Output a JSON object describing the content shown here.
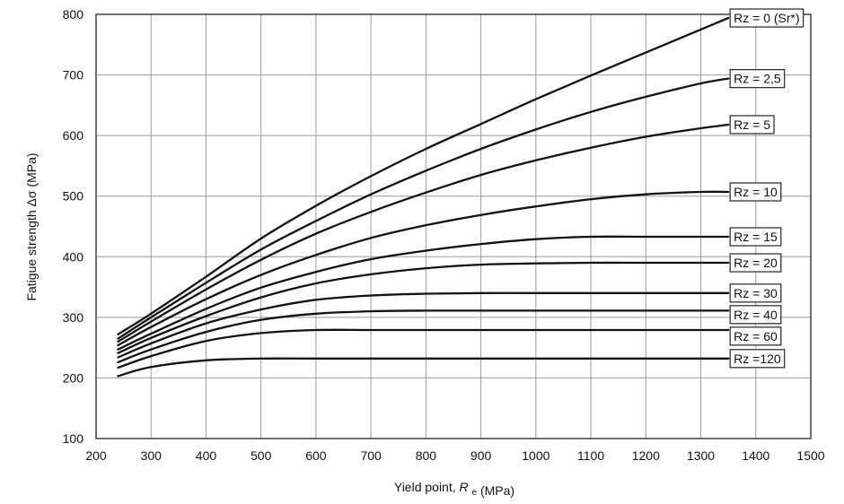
{
  "chart_data": {
    "type": "line",
    "title": "",
    "xlabel": "Yield point,",
    "xlabel_symbol": "R",
    "xlabel_sub": "e",
    "xlabel_unit": "(MPa)",
    "ylabel": "Fatigue strength Δσ (MPa)",
    "xlim": [
      200,
      1500
    ],
    "ylim": [
      100,
      800
    ],
    "xticks": [
      200,
      300,
      400,
      500,
      600,
      700,
      800,
      900,
      1000,
      1100,
      1200,
      1300,
      1400,
      1500
    ],
    "yticks": [
      100,
      200,
      300,
      400,
      500,
      600,
      700,
      800
    ],
    "grid": true,
    "legend": "inline labels at right end of curves",
    "x": [
      240,
      300,
      400,
      500,
      600,
      700,
      800,
      900,
      1000,
      1100,
      1200,
      1300,
      1350
    ],
    "series": [
      {
        "name": "Rz = 0 (Sr*)",
        "values": [
          272,
          306,
          367,
          430,
          484,
          533,
          578,
          619,
          660,
          699,
          737,
          775,
          794
        ]
      },
      {
        "name": "Rz = 2,5",
        "values": [
          265,
          300,
          357,
          412,
          459,
          503,
          542,
          578,
          610,
          639,
          664,
          686,
          694
        ]
      },
      {
        "name": "Rz = 5",
        "values": [
          260,
          293,
          346,
          395,
          438,
          474,
          506,
          535,
          559,
          580,
          598,
          612,
          618
        ]
      },
      {
        "name": "Rz = 10",
        "values": [
          254,
          284,
          330,
          370,
          403,
          431,
          452,
          469,
          483,
          495,
          503,
          507,
          507
        ]
      },
      {
        "name": "Rz = 15",
        "values": [
          247,
          273,
          314,
          349,
          375,
          396,
          410,
          421,
          429,
          433,
          433,
          433,
          433
        ]
      },
      {
        "name": "Rz = 20",
        "values": [
          241,
          266,
          302,
          333,
          356,
          371,
          381,
          387,
          389,
          390,
          390,
          390,
          390
        ]
      },
      {
        "name": "Rz = 30",
        "values": [
          234,
          257,
          290,
          313,
          329,
          336,
          339,
          340,
          340,
          340,
          340,
          340,
          340
        ]
      },
      {
        "name": "Rz = 40",
        "values": [
          226,
          247,
          276,
          296,
          306,
          310,
          311,
          311,
          311,
          311,
          311,
          311,
          311
        ]
      },
      {
        "name": "Rz = 60",
        "values": [
          217,
          236,
          261,
          274,
          279,
          279,
          279,
          279,
          279,
          279,
          279,
          279,
          279
        ]
      },
      {
        "name": "Rz =120",
        "values": [
          203,
          218,
          229,
          232,
          232,
          232,
          232,
          232,
          232,
          232,
          232,
          232,
          232
        ]
      }
    ]
  }
}
